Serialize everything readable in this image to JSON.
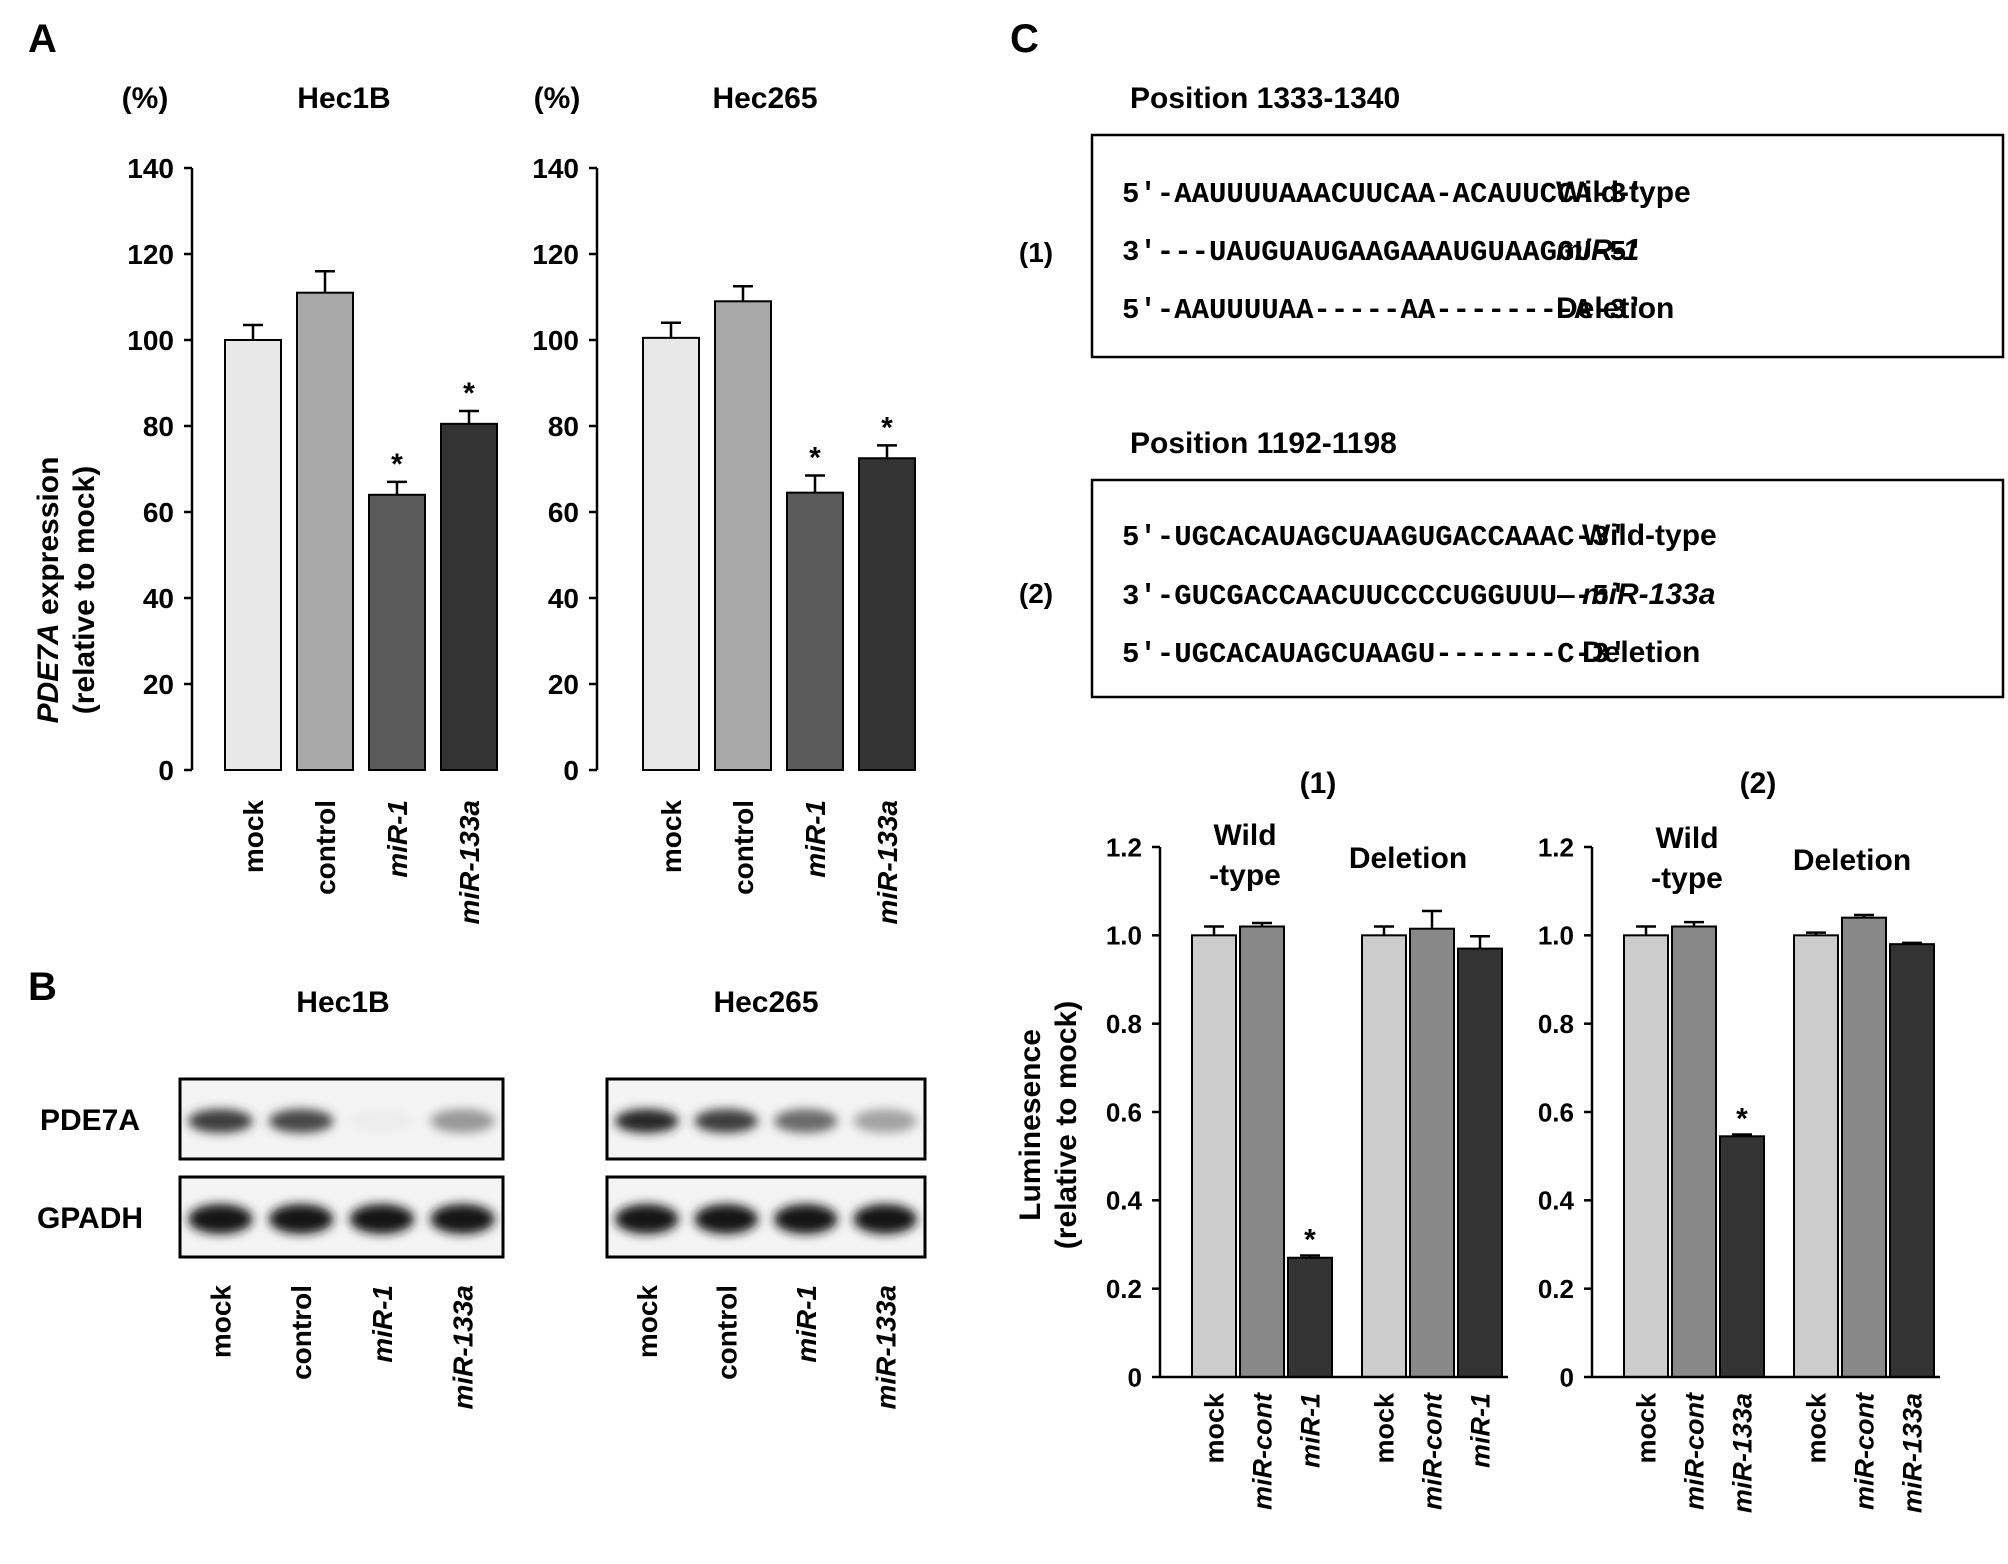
{
  "panels": {
    "A": "A",
    "B": "B",
    "C": "C"
  },
  "chart_data": [
    {
      "id": "A1",
      "type": "bar",
      "title": "Hec1B",
      "unit_label": "(%)",
      "ylabel_italic": "PDE7A",
      "ylabel_rest": " expression",
      "ylabel2": "(relative to mock)",
      "ylim": [
        0,
        140
      ],
      "yticks": [
        "0",
        "20",
        "40",
        "60",
        "80",
        "100",
        "120",
        "140"
      ],
      "categories": [
        "mock",
        "control",
        "miR-1",
        "miR-133a"
      ],
      "values": [
        100,
        111,
        64,
        80.5
      ],
      "errors": [
        3.5,
        5,
        3,
        3
      ],
      "significant": [
        "",
        "",
        "*",
        "*"
      ],
      "colors": [
        "#e8e8e8",
        "#a8a8a8",
        "#5a5a5a",
        "#333333"
      ]
    },
    {
      "id": "A2",
      "type": "bar",
      "title": "Hec265",
      "unit_label": "(%)",
      "ylim": [
        0,
        140
      ],
      "yticks": [
        "0",
        "20",
        "40",
        "60",
        "80",
        "100",
        "120",
        "140"
      ],
      "categories": [
        "mock",
        "control",
        "miR-1",
        "miR-133a"
      ],
      "values": [
        100.5,
        109,
        64.5,
        72.5
      ],
      "errors": [
        3.5,
        3.5,
        4,
        3
      ],
      "significant": [
        "",
        "",
        "*",
        "*"
      ],
      "colors": [
        "#e8e8e8",
        "#a8a8a8",
        "#5a5a5a",
        "#333333"
      ]
    },
    {
      "id": "C1",
      "type": "bar",
      "title": "(1)",
      "ylabel": "Luminesence",
      "ylabel2": "(relative to mock)",
      "ylim": [
        0,
        1.2
      ],
      "yticks": [
        "0",
        "0.2",
        "0.4",
        "0.6",
        "0.8",
        "1.0",
        "1.2"
      ],
      "group_labels": [
        "Wild",
        "-type",
        "Deletion"
      ],
      "categories": [
        "mock",
        "miR-cont",
        "miR-1",
        "mock",
        "miR-cont",
        "miR-1"
      ],
      "values": [
        1.0,
        1.02,
        0.27,
        1.0,
        1.015,
        0.97
      ],
      "errors": [
        0.02,
        0.008,
        0.005,
        0.02,
        0.04,
        0.028
      ],
      "significant": [
        "",
        "",
        "*",
        "",
        "",
        ""
      ],
      "colors": [
        "#cccccc",
        "#888888",
        "#333333",
        "#cccccc",
        "#888888",
        "#333333"
      ]
    },
    {
      "id": "C2",
      "type": "bar",
      "title": "(2)",
      "ylim": [
        0,
        1.2
      ],
      "yticks": [
        "0",
        "0.2",
        "0.4",
        "0.6",
        "0.8",
        "1.0",
        "1.2"
      ],
      "group_labels": [
        "Wild",
        "-type",
        "Deletion"
      ],
      "categories": [
        "mock",
        "miR-cont",
        "miR-133a",
        "mock",
        "miR-cont",
        "miR-133a"
      ],
      "values": [
        1.0,
        1.02,
        0.545,
        1.0,
        1.04,
        0.98
      ],
      "errors": [
        0.02,
        0.01,
        0.004,
        0.006,
        0.006,
        0.003
      ],
      "significant": [
        "",
        "",
        "*",
        "",
        "",
        ""
      ],
      "colors": [
        "#cccccc",
        "#888888",
        "#333333",
        "#cccccc",
        "#888888",
        "#333333"
      ]
    }
  ],
  "blots": [
    {
      "title": "Hec1B",
      "rows": [
        "PDE7A",
        "GPADH"
      ],
      "lanes": [
        "mock",
        "control",
        "miR-1",
        "miR-133a"
      ],
      "pde_intensity": [
        0.85,
        0.8,
        0.08,
        0.45
      ]
    },
    {
      "title": "Hec265",
      "rows": [
        "PDE7A",
        "GPADH"
      ],
      "lanes": [
        "mock",
        "control",
        "miR-1",
        "miR-133a"
      ],
      "pde_intensity": [
        0.95,
        0.85,
        0.65,
        0.4
      ]
    }
  ],
  "sequences": [
    {
      "label": "(1)",
      "position": "Position 1333-1340",
      "lines": [
        {
          "seq": "5′-AAUUUUAAACUUCAA-ACAUUCCA-3′",
          "name": "Wild-type",
          "italic": false
        },
        {
          "seq": "3′---UAUGUAUGAAGAAAUGUAAGGU-5′",
          "name": "miR-1",
          "italic": true
        },
        {
          "seq": "5′-AAUUUUAA-----AA--------A-3′",
          "name": "Deletion",
          "italic": false
        }
      ]
    },
    {
      "label": "(2)",
      "position": "Position 1192-1198",
      "lines": [
        {
          "seq": "5′-UGCACAUAGCUAAGUGACCAAAC-3′",
          "name": "Wild-type",
          "italic": false
        },
        {
          "seq": "3′-GUCGACCAACUUCCCCUGGUUU—-5′",
          "name": "miR-133a",
          "italic": true
        },
        {
          "seq": "5′-UGCACAUAGCUAAGU-------C-3′",
          "name": "Deletion",
          "italic": false
        }
      ]
    }
  ]
}
